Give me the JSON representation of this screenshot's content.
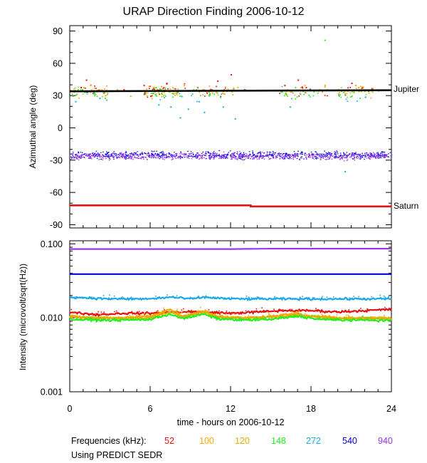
{
  "title": "URAP Direction Finding  2006-10-12",
  "xlabel": "time - hours on 2006-10-12",
  "footer": {
    "frequencies_label": "Frequencies (kHz):",
    "note": "Using PREDICT SEDR"
  },
  "colors": {
    "f52": "#e81010",
    "f100": "#ffa500",
    "f120": "#e0b000",
    "f148": "#22ee22",
    "f272": "#19a8e8",
    "f540": "#0000e0",
    "f940": "#9a34ee",
    "reference": "#000000"
  },
  "chart_data": [
    {
      "type": "scatter",
      "name": "direction",
      "ylabel": "Azimuthal angle (deg)",
      "xlim": [
        0,
        24
      ],
      "ylim": [
        -93,
        95
      ],
      "xticks": [
        "0",
        "6",
        "12",
        "18",
        "24"
      ],
      "yticks": [
        "90",
        "60",
        "30",
        "0",
        "-30",
        "-60",
        "-90"
      ],
      "annotations": [
        "Jupiter",
        "Saturn"
      ],
      "jupiter": {
        "x": [
          0,
          24
        ],
        "y": [
          34,
          35
        ]
      },
      "saturn": {
        "x": [
          0,
          13.5,
          13.5,
          24
        ],
        "y": [
          -72,
          -72,
          -73,
          -73
        ]
      },
      "series": [
        {
          "name": "52",
          "y_center": 35,
          "spread": 8,
          "x": [
            0.8,
            1.2,
            2.5,
            4.0,
            5.5,
            6.0,
            7.2,
            8.0,
            9.5,
            10.2,
            11.0,
            12.0,
            13.0,
            16.0,
            17.0,
            17.6,
            18.5,
            21.0,
            22.5
          ],
          "y": [
            38,
            45,
            33,
            36,
            40,
            30,
            42,
            35,
            38,
            33,
            44,
            50,
            36,
            40,
            45,
            38,
            35,
            42,
            37
          ]
        },
        {
          "name": "100",
          "y_center": 34,
          "spread": 8,
          "x": [
            0.5,
            1.5,
            2.2,
            4.5,
            6.2,
            7.0,
            8.5,
            10.0,
            11.5,
            12.5,
            16.5,
            17.5,
            18.6,
            20.0,
            21.5,
            23.0
          ],
          "y": [
            32,
            40,
            36,
            30,
            38,
            34,
            40,
            36,
            32,
            38,
            34,
            40,
            36,
            32,
            38,
            35
          ]
        },
        {
          "name": "120",
          "y_center": 35,
          "spread": 7,
          "x": [
            0.3,
            1.0,
            2.0,
            3.5,
            5.8,
            6.8,
            7.8,
            9.2,
            10.6,
            12.2,
            16.2,
            17.2,
            18.8,
            19.2,
            20.5,
            21.3
          ],
          "y": [
            34,
            38,
            30,
            36,
            35,
            39,
            31,
            36,
            33,
            37,
            30,
            38,
            34,
            36,
            32,
            40
          ]
        },
        {
          "name": "148",
          "y_center": 33,
          "spread": 7,
          "x": [
            0.2,
            0.9,
            1.8,
            2.6,
            5.6,
            6.4,
            7.4,
            8.3,
            9.4,
            10.4,
            11.2,
            15.8,
            16.8,
            17.8,
            18.2,
            19.0,
            20.0,
            21.0
          ],
          "y": [
            30,
            36,
            33,
            28,
            32,
            38,
            34,
            30,
            36,
            32,
            29,
            34,
            38,
            31,
            35,
            82,
            36,
            30
          ]
        },
        {
          "name": "272",
          "y_center": 30,
          "spread": 10,
          "x": [
            0.4,
            2.2,
            6.6,
            7.5,
            8.2,
            8.8,
            9.6,
            10.0,
            11.4,
            12.3,
            16.4,
            20.5
          ],
          "y": [
            25,
            28,
            22,
            20,
            10,
            18,
            25,
            15,
            20,
            9,
            20,
            -40
          ]
        },
        {
          "name": "540",
          "y_center": -25,
          "spread": 5,
          "x": [
            0.5,
            3.0,
            6.0,
            8.0,
            10.0,
            13.0,
            16.0,
            19.0,
            21.0,
            23.5
          ],
          "y": [
            -24,
            -22,
            -27,
            -25,
            -23,
            -26,
            -24,
            -22,
            -27,
            -25
          ]
        },
        {
          "name": "940",
          "y_center": -26,
          "spread": 5,
          "x": [
            1.0,
            3.5,
            6.5,
            9.0,
            11.5,
            14.0,
            16.5,
            19.5,
            22.0,
            23.0
          ],
          "y": [
            -27,
            -25,
            -28,
            -26,
            -24,
            -28,
            -26,
            -24,
            -27,
            -26
          ]
        }
      ]
    },
    {
      "type": "line",
      "name": "intensity",
      "ylabel": "Intensity (microvolt/sqrt(Hz))",
      "yscale": "log",
      "xlim": [
        0,
        24
      ],
      "ylim": [
        0.001,
        0.11
      ],
      "xticks": [
        "0",
        "6",
        "12",
        "18",
        "24"
      ],
      "yticks": [
        "0.100",
        "0.010",
        "0.001"
      ],
      "series": [
        {
          "name": "940",
          "x": [
            0,
            6,
            12,
            15,
            18,
            24
          ],
          "y": [
            0.085,
            0.085,
            0.085,
            0.086,
            0.086,
            0.086
          ]
        },
        {
          "name": "540",
          "x": [
            0,
            6,
            12,
            15,
            18,
            24
          ],
          "y": [
            0.039,
            0.039,
            0.039,
            0.039,
            0.039,
            0.039
          ]
        },
        {
          "name": "272",
          "x": [
            0,
            3,
            6,
            7.5,
            9,
            10,
            12,
            15,
            18,
            21,
            24
          ],
          "y": [
            0.019,
            0.018,
            0.018,
            0.019,
            0.018,
            0.019,
            0.018,
            0.018,
            0.018,
            0.018,
            0.018
          ]
        },
        {
          "name": "52",
          "x": [
            0,
            2,
            4,
            6,
            8,
            10,
            12,
            14,
            16,
            18,
            20,
            22,
            24
          ],
          "y": [
            0.012,
            0.011,
            0.0115,
            0.0115,
            0.012,
            0.012,
            0.0115,
            0.012,
            0.0125,
            0.0125,
            0.012,
            0.0125,
            0.013
          ]
        },
        {
          "name": "100",
          "x": [
            0,
            2,
            4,
            6,
            7.5,
            8.5,
            10,
            11,
            13,
            15,
            17,
            17.5,
            18.5,
            20,
            22,
            24
          ],
          "y": [
            0.0105,
            0.01,
            0.01,
            0.0105,
            0.013,
            0.0105,
            0.0125,
            0.0105,
            0.01,
            0.0105,
            0.0115,
            0.0105,
            0.0105,
            0.01,
            0.01,
            0.0098
          ]
        },
        {
          "name": "120",
          "x": [
            0,
            2,
            4,
            6,
            7.5,
            8.5,
            10,
            11,
            13,
            15,
            17,
            18.5,
            20,
            22,
            24
          ],
          "y": [
            0.0102,
            0.0098,
            0.0098,
            0.01,
            0.012,
            0.0102,
            0.0118,
            0.0102,
            0.0098,
            0.0102,
            0.011,
            0.0102,
            0.0098,
            0.0098,
            0.0096
          ]
        },
        {
          "name": "148",
          "x": [
            0,
            2,
            4,
            6,
            7.5,
            8.5,
            10,
            11,
            13,
            15,
            17,
            18.5,
            20,
            22,
            24
          ],
          "y": [
            0.0095,
            0.0093,
            0.0093,
            0.0095,
            0.0112,
            0.0097,
            0.0112,
            0.0097,
            0.0093,
            0.0095,
            0.0105,
            0.0096,
            0.0093,
            0.0093,
            0.0092
          ]
        }
      ]
    }
  ]
}
